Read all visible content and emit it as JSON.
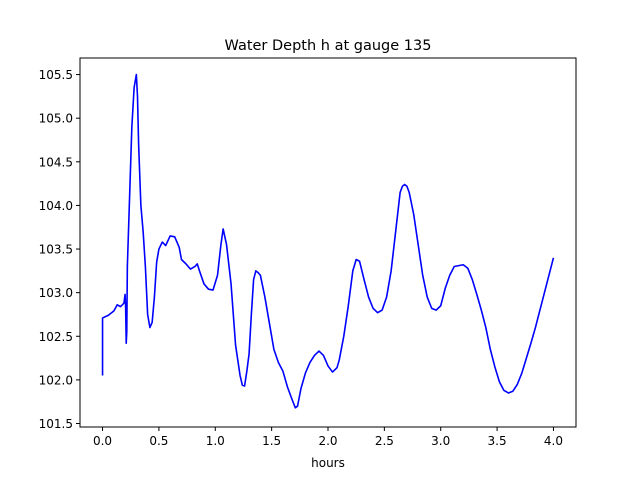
{
  "chart_data": {
    "type": "line",
    "title": "Water Depth h at gauge 135",
    "xlabel": "hours",
    "ylabel": "",
    "xlim": [
      -0.2,
      4.2
    ],
    "ylim": [
      101.46,
      105.69
    ],
    "xticks": [
      0.0,
      0.5,
      1.0,
      1.5,
      2.0,
      2.5,
      3.0,
      3.5,
      4.0
    ],
    "xtick_labels": [
      "0.0",
      "0.5",
      "1.0",
      "1.5",
      "2.0",
      "2.5",
      "3.0",
      "3.5",
      "4.0"
    ],
    "yticks": [
      101.5,
      102.0,
      102.5,
      103.0,
      103.5,
      104.0,
      104.5,
      105.0,
      105.5
    ],
    "ytick_labels": [
      "101.5",
      "102.0",
      "102.5",
      "103.0",
      "103.5",
      "104.0",
      "104.5",
      "105.0",
      "105.5"
    ],
    "grid": false,
    "legend": "none",
    "series": [
      {
        "color": "#0000ff",
        "x": [
          0.0,
          0.0,
          0.05,
          0.1,
          0.13,
          0.16,
          0.19,
          0.2,
          0.205,
          0.21,
          0.215,
          0.22,
          0.24,
          0.26,
          0.28,
          0.3,
          0.31,
          0.32,
          0.34,
          0.36,
          0.38,
          0.4,
          0.42,
          0.44,
          0.46,
          0.48,
          0.5,
          0.53,
          0.56,
          0.6,
          0.64,
          0.68,
          0.7,
          0.74,
          0.78,
          0.82,
          0.84,
          0.86,
          0.9,
          0.94,
          0.98,
          1.02,
          1.05,
          1.07,
          1.1,
          1.14,
          1.18,
          1.22,
          1.24,
          1.26,
          1.28,
          1.3,
          1.32,
          1.34,
          1.36,
          1.38,
          1.4,
          1.44,
          1.48,
          1.52,
          1.56,
          1.6,
          1.64,
          1.68,
          1.71,
          1.73,
          1.76,
          1.8,
          1.84,
          1.88,
          1.92,
          1.96,
          2.0,
          2.04,
          2.08,
          2.1,
          2.14,
          2.18,
          2.22,
          2.25,
          2.28,
          2.32,
          2.36,
          2.4,
          2.44,
          2.48,
          2.52,
          2.56,
          2.6,
          2.64,
          2.66,
          2.68,
          2.7,
          2.72,
          2.76,
          2.8,
          2.84,
          2.88,
          2.92,
          2.96,
          3.0,
          3.04,
          3.08,
          3.12,
          3.16,
          3.2,
          3.24,
          3.28,
          3.32,
          3.36,
          3.4,
          3.44,
          3.48,
          3.52,
          3.56,
          3.6,
          3.64,
          3.68,
          3.72,
          3.76,
          3.8,
          3.84,
          3.88,
          3.92,
          3.96,
          4.0
        ],
        "y": [
          102.05,
          102.71,
          102.74,
          102.79,
          102.86,
          102.84,
          102.88,
          102.98,
          102.82,
          102.42,
          102.55,
          103.3,
          104.1,
          104.9,
          105.35,
          105.5,
          105.25,
          104.7,
          104.0,
          103.7,
          103.3,
          102.75,
          102.6,
          102.66,
          102.95,
          103.35,
          103.5,
          103.58,
          103.54,
          103.65,
          103.64,
          103.52,
          103.38,
          103.33,
          103.27,
          103.3,
          103.33,
          103.25,
          103.1,
          103.04,
          103.03,
          103.2,
          103.55,
          103.73,
          103.55,
          103.1,
          102.4,
          102.05,
          101.94,
          101.93,
          102.1,
          102.3,
          102.75,
          103.15,
          103.25,
          103.23,
          103.2,
          102.95,
          102.65,
          102.35,
          102.2,
          102.1,
          101.92,
          101.78,
          101.68,
          101.7,
          101.9,
          102.08,
          102.2,
          102.28,
          102.33,
          102.28,
          102.16,
          102.09,
          102.14,
          102.23,
          102.5,
          102.85,
          103.25,
          103.38,
          103.36,
          103.15,
          102.95,
          102.82,
          102.77,
          102.8,
          102.95,
          103.25,
          103.7,
          104.15,
          104.22,
          104.24,
          104.22,
          104.15,
          103.9,
          103.55,
          103.2,
          102.95,
          102.82,
          102.8,
          102.85,
          103.05,
          103.2,
          103.3,
          103.31,
          103.32,
          103.28,
          103.15,
          102.98,
          102.8,
          102.6,
          102.35,
          102.15,
          101.98,
          101.88,
          101.85,
          101.87,
          101.95,
          102.08,
          102.25,
          102.42,
          102.6,
          102.8,
          103.0,
          103.2,
          103.4
        ]
      }
    ]
  }
}
